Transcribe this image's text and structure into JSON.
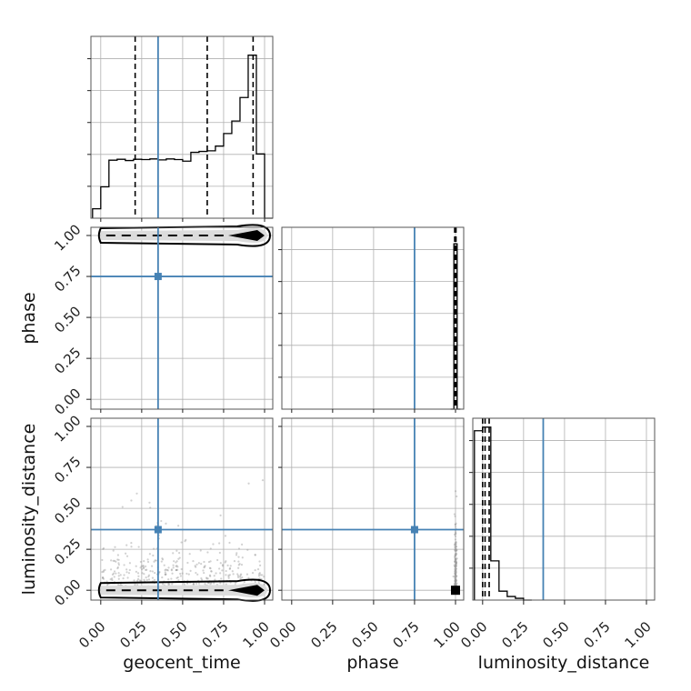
{
  "chart_data": {
    "type": "corner",
    "parameters": [
      "geocent_time",
      "phase",
      "luminosity_distance"
    ],
    "tick_labels": [
      "0.00",
      "0.25",
      "0.50",
      "0.75",
      "1.00"
    ],
    "axis_range": [
      -0.06,
      1.05
    ],
    "truths": {
      "geocent_time": 0.35,
      "phase": 0.75,
      "luminosity_distance": 0.37
    },
    "colors": {
      "truth": "#4682b4",
      "hist": "#000000",
      "grid": "#b0b0b0",
      "samples": "#9a9a9a"
    },
    "marginals": {
      "geocent_time": {
        "bin_edges": [
          -0.05,
          0.0,
          0.05,
          0.1,
          0.15,
          0.2,
          0.25,
          0.3,
          0.35,
          0.4,
          0.45,
          0.5,
          0.55,
          0.6,
          0.65,
          0.7,
          0.75,
          0.8,
          0.85,
          0.9,
          0.95,
          1.0,
          1.05
        ],
        "counts": [
          0.3,
          1.0,
          1.85,
          1.88,
          1.84,
          1.88,
          1.87,
          1.89,
          1.86,
          1.89,
          1.87,
          1.82,
          2.1,
          2.13,
          2.15,
          2.3,
          2.7,
          3.1,
          3.85,
          5.2,
          2.05,
          0.0
        ],
        "ylim": [
          0,
          5.8
        ],
        "quantiles": [
          0.21,
          0.65,
          0.93
        ]
      },
      "phase": {
        "bin_edges": [
          0.97,
          0.99,
          1.01,
          1.03
        ],
        "counts": [
          0.0,
          1.0,
          0.0
        ],
        "ylim": [
          0,
          1.1
        ],
        "quantiles": [
          0.995,
          1.0,
          1.003
        ]
      },
      "luminosity_distance": {
        "bin_edges": [
          -0.05,
          0.0,
          0.05,
          0.1,
          0.15,
          0.2,
          0.25,
          0.3
        ],
        "counts": [
          0.95,
          0.97,
          0.22,
          0.05,
          0.02,
          0.01,
          0.0
        ],
        "ylim": [
          0,
          1.02
        ],
        "quantiles": [
          0.0,
          0.015,
          0.04
        ]
      }
    },
    "joint": {
      "geocent_time_vs_phase": {
        "x": "geocent_time",
        "y": "phase",
        "y_center": 1.0,
        "x_range": [
          0.0,
          1.0
        ],
        "dense_near_x": 0.95
      },
      "geocent_time_vs_luminosity_distance": {
        "x": "geocent_time",
        "y": "luminosity_distance",
        "y_center": 0.0,
        "x_range": [
          0.0,
          1.0
        ],
        "dense_near_x": 0.95
      },
      "phase_vs_luminosity_distance": {
        "x": "phase",
        "y": "luminosity_distance",
        "x_center": 1.0,
        "y_range": [
          0.0,
          0.75
        ]
      }
    }
  }
}
